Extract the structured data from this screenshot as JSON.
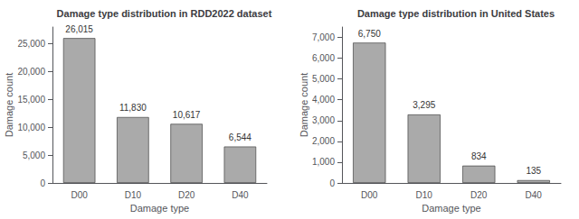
{
  "chart_data": [
    {
      "type": "bar",
      "title": "Damage type distribution in RDD2022 dataset",
      "xlabel": "Damage type",
      "ylabel": "Damage count",
      "categories": [
        "D00",
        "D10",
        "D20",
        "D40"
      ],
      "values": [
        26015,
        11830,
        10617,
        6544
      ],
      "value_labels": [
        "26,015",
        "11,830",
        "10,617",
        "6,544"
      ],
      "color": "#aaaaaa",
      "ylim": [
        0,
        28000
      ],
      "yticks": [
        0,
        {
          "value": 5000,
          "label": "5,000"
        },
        {
          "value": 10000,
          "label": "10,000"
        },
        {
          "value": 15000,
          "label": "15,000"
        },
        {
          "value": 20000,
          "label": "20,000"
        },
        {
          "value": 25000,
          "label": "25,000"
        }
      ],
      "grid": false,
      "data_labels": true
    },
    {
      "type": "bar",
      "title": "Damage type distribution in United States",
      "xlabel": "Damage type",
      "ylabel": "Damage count",
      "categories": [
        "D00",
        "D10",
        "D20",
        "D40"
      ],
      "values": [
        6750,
        3295,
        834,
        135
      ],
      "value_labels": [
        "6,750",
        "3,295",
        "834",
        "135"
      ],
      "color": "#aaaaaa",
      "ylim": [
        0,
        7500
      ],
      "yticks": [
        0,
        {
          "value": 1000,
          "label": "1,000"
        },
        {
          "value": 2000,
          "label": "2,000"
        },
        {
          "value": 3000,
          "label": "3,000"
        },
        {
          "value": 4000,
          "label": "4,000"
        },
        {
          "value": 5000,
          "label": "5,000"
        },
        {
          "value": 6000,
          "label": "6,000"
        },
        {
          "value": 7000,
          "label": "7,000"
        }
      ],
      "grid": false,
      "data_labels": true
    }
  ]
}
